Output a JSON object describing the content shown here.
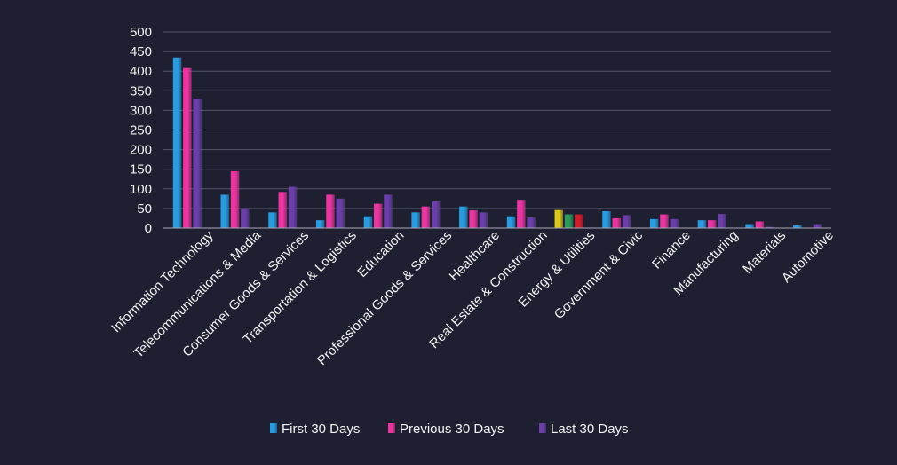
{
  "chart_data": {
    "type": "bar",
    "title": "",
    "xlabel": "",
    "ylabel": "",
    "ylim": [
      0,
      500
    ],
    "yticks": [
      0,
      50,
      100,
      150,
      200,
      250,
      300,
      350,
      400,
      450,
      500
    ],
    "grid": true,
    "legend_position": "bottom",
    "categories": [
      "Information Technology",
      "Telecommunications & Media",
      "Consumer Goods &  Services",
      "Transportation & Logistics",
      "Education",
      "Professional Goods & Services",
      "Healthcare",
      "Real Estate & Construction",
      "Energy & Utilities",
      "Government & Civic",
      "Finance",
      "Manufacturing",
      "Materials",
      "Automotive"
    ],
    "series": [
      {
        "name": "First 30 Days",
        "color": "#2b9be0",
        "values": [
          435,
          85,
          40,
          20,
          30,
          40,
          55,
          30,
          46,
          43,
          23,
          20,
          10,
          7
        ]
      },
      {
        "name": "Previous 30 Days",
        "color": "#e8359f",
        "values": [
          408,
          145,
          92,
          85,
          62,
          55,
          45,
          72,
          35,
          25,
          35,
          20,
          17,
          0
        ]
      },
      {
        "name": "Last 30 Days",
        "color": "#6a3fa8",
        "values": [
          330,
          50,
          105,
          75,
          85,
          68,
          40,
          27,
          35,
          33,
          23,
          36,
          3,
          10
        ]
      }
    ],
    "special_bar_colors": {
      "Energy & Utilities": [
        "#d8c81c",
        "#2e9a5a",
        "#d21e2a"
      ]
    }
  }
}
